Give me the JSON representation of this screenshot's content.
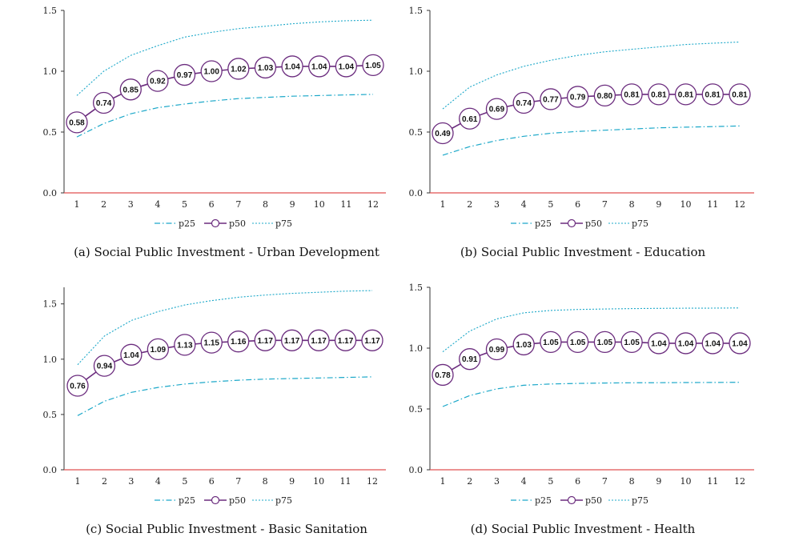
{
  "colors": {
    "p25": "#1ca8c9",
    "p50": "#6b2c7e",
    "p75": "#1ca8c9",
    "zero_line": "#e05050"
  },
  "legend": {
    "p25": "p25",
    "p50": "p50",
    "p75": "p75"
  },
  "chart_data": [
    {
      "type": "line",
      "caption": "(a) Social Public Investment - Urban Development",
      "x": [
        1,
        2,
        3,
        4,
        5,
        6,
        7,
        8,
        9,
        10,
        11,
        12
      ],
      "ylim": [
        0,
        1.5
      ],
      "yticks": [
        "0.0",
        "0.5",
        "1.0",
        "1.5"
      ],
      "series": [
        {
          "name": "p25",
          "values": [
            0.46,
            0.57,
            0.65,
            0.7,
            0.73,
            0.755,
            0.775,
            0.785,
            0.795,
            0.8,
            0.805,
            0.81
          ]
        },
        {
          "name": "p50",
          "values": [
            0.58,
            0.74,
            0.85,
            0.92,
            0.97,
            1.0,
            1.02,
            1.03,
            1.04,
            1.04,
            1.04,
            1.05
          ],
          "labels": [
            "0.58",
            "0.74",
            "0.85",
            "0.92",
            "0.97",
            "1.00",
            "1.02",
            "1.03",
            "1.04",
            "1.04",
            "1.04",
            "1.05"
          ]
        },
        {
          "name": "p75",
          "values": [
            0.8,
            1.0,
            1.13,
            1.21,
            1.28,
            1.32,
            1.35,
            1.37,
            1.39,
            1.405,
            1.415,
            1.42
          ]
        }
      ]
    },
    {
      "type": "line",
      "caption": "(b) Social Public Investment - Education",
      "x": [
        1,
        2,
        3,
        4,
        5,
        6,
        7,
        8,
        9,
        10,
        11,
        12
      ],
      "ylim": [
        0,
        1.5
      ],
      "yticks": [
        "0.0",
        "0.5",
        "1.0",
        "1.5"
      ],
      "series": [
        {
          "name": "p25",
          "values": [
            0.31,
            0.38,
            0.43,
            0.465,
            0.49,
            0.505,
            0.515,
            0.525,
            0.535,
            0.54,
            0.545,
            0.55
          ]
        },
        {
          "name": "p50",
          "values": [
            0.49,
            0.61,
            0.69,
            0.74,
            0.77,
            0.79,
            0.8,
            0.81,
            0.81,
            0.81,
            0.81,
            0.81
          ],
          "labels": [
            "0.49",
            "0.61",
            "0.69",
            "0.74",
            "0.77",
            "0.79",
            "0.80",
            "0.81",
            "0.81",
            "0.81",
            "0.81",
            "0.81"
          ]
        },
        {
          "name": "p75",
          "values": [
            0.69,
            0.87,
            0.97,
            1.04,
            1.09,
            1.13,
            1.16,
            1.18,
            1.2,
            1.22,
            1.23,
            1.24
          ]
        }
      ]
    },
    {
      "type": "line",
      "caption": "(c) Social Public Investment - Basic Sanitation",
      "x": [
        1,
        2,
        3,
        4,
        5,
        6,
        7,
        8,
        9,
        10,
        11,
        12
      ],
      "ylim": [
        0,
        1.65
      ],
      "yticks": [
        "0.0",
        "0.5",
        "1.0",
        "1.5"
      ],
      "series": [
        {
          "name": "p25",
          "values": [
            0.49,
            0.62,
            0.7,
            0.745,
            0.775,
            0.795,
            0.81,
            0.82,
            0.825,
            0.83,
            0.835,
            0.84
          ]
        },
        {
          "name": "p50",
          "values": [
            0.76,
            0.94,
            1.04,
            1.09,
            1.13,
            1.15,
            1.16,
            1.17,
            1.17,
            1.17,
            1.17,
            1.17
          ],
          "labels": [
            "0.76",
            "0.94",
            "1.04",
            "1.09",
            "1.13",
            "1.15",
            "1.16",
            "1.17",
            "1.17",
            "1.17",
            "1.17",
            "1.17"
          ]
        },
        {
          "name": "p75",
          "values": [
            0.95,
            1.21,
            1.35,
            1.43,
            1.49,
            1.53,
            1.56,
            1.58,
            1.595,
            1.605,
            1.615,
            1.62
          ]
        }
      ]
    },
    {
      "type": "line",
      "caption": "(d) Social Public Investment - Health",
      "x": [
        1,
        2,
        3,
        4,
        5,
        6,
        7,
        8,
        9,
        10,
        11,
        12
      ],
      "ylim": [
        0,
        1.5
      ],
      "yticks": [
        "0.0",
        "0.5",
        "1.0",
        "1.5"
      ],
      "series": [
        {
          "name": "p25",
          "values": [
            0.52,
            0.61,
            0.665,
            0.695,
            0.705,
            0.71,
            0.713,
            0.715,
            0.716,
            0.717,
            0.718,
            0.719
          ]
        },
        {
          "name": "p50",
          "values": [
            0.78,
            0.91,
            0.99,
            1.03,
            1.05,
            1.05,
            1.05,
            1.05,
            1.04,
            1.04,
            1.04,
            1.04
          ],
          "labels": [
            "0.78",
            "0.91",
            "0.99",
            "1.03",
            "1.05",
            "1.05",
            "1.05",
            "1.05",
            "1.04",
            "1.04",
            "1.04",
            "1.04"
          ]
        },
        {
          "name": "p75",
          "values": [
            0.97,
            1.14,
            1.24,
            1.29,
            1.31,
            1.318,
            1.322,
            1.325,
            1.327,
            1.328,
            1.329,
            1.33
          ]
        }
      ]
    }
  ]
}
